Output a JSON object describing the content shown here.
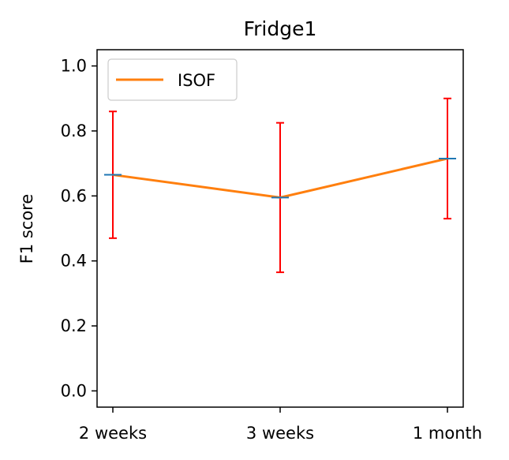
{
  "chart_data": {
    "type": "line",
    "title": "Fridge1",
    "xlabel": "",
    "ylabel": "F1 score",
    "categories": [
      "2 weeks",
      "3 weeks",
      "1 month"
    ],
    "ylim": [
      -0.05,
      1.05
    ],
    "yticks": [
      0.0,
      0.2,
      0.4,
      0.6,
      0.8,
      1.0
    ],
    "ytick_labels": [
      "0.0",
      "0.2",
      "0.4",
      "0.6",
      "0.8",
      "1.0"
    ],
    "grid": false,
    "legend": "upper-left",
    "series": [
      {
        "name": "ISOF",
        "values": [
          0.665,
          0.595,
          0.715
        ],
        "error_low": [
          0.47,
          0.365,
          0.53
        ],
        "error_high": [
          0.86,
          0.825,
          0.9
        ],
        "color": "#ff7f0e",
        "marker_color": "#1f77b4",
        "error_color": "#ff0000"
      }
    ]
  }
}
